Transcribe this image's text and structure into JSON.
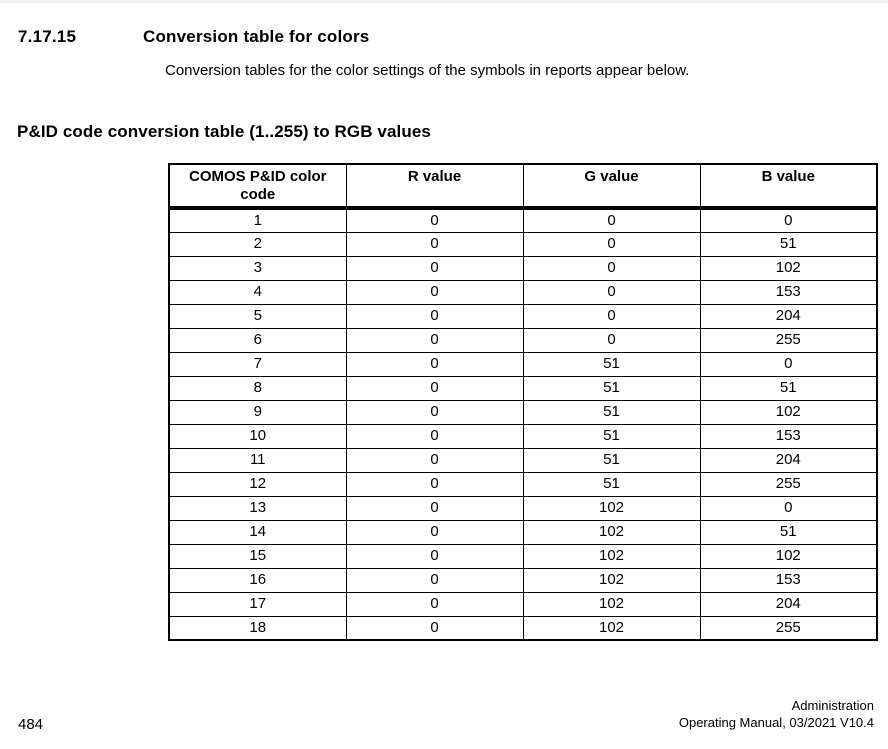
{
  "page": {
    "section_number": "7.17.15",
    "section_title": "Conversion table for colors",
    "intro_text": "Conversion tables for the color settings of the symbols in reports appear below.",
    "table_heading": "P&ID code conversion table (1..255) to RGB values"
  },
  "table": {
    "columns": [
      "COMOS P&ID color code",
      "R value",
      "G value",
      "B value"
    ],
    "rows": [
      [
        "1",
        "0",
        "0",
        "0"
      ],
      [
        "2",
        "0",
        "0",
        "51"
      ],
      [
        "3",
        "0",
        "0",
        "102"
      ],
      [
        "4",
        "0",
        "0",
        "153"
      ],
      [
        "5",
        "0",
        "0",
        "204"
      ],
      [
        "6",
        "0",
        "0",
        "255"
      ],
      [
        "7",
        "0",
        "51",
        "0"
      ],
      [
        "8",
        "0",
        "51",
        "51"
      ],
      [
        "9",
        "0",
        "51",
        "102"
      ],
      [
        "10",
        "0",
        "51",
        "153"
      ],
      [
        "11",
        "0",
        "51",
        "204"
      ],
      [
        "12",
        "0",
        "51",
        "255"
      ],
      [
        "13",
        "0",
        "102",
        "0"
      ],
      [
        "14",
        "0",
        "102",
        "51"
      ],
      [
        "15",
        "0",
        "102",
        "102"
      ],
      [
        "16",
        "0",
        "102",
        "153"
      ],
      [
        "17",
        "0",
        "102",
        "204"
      ],
      [
        "18",
        "0",
        "102",
        "255"
      ]
    ]
  },
  "footer": {
    "page_number": "484",
    "doc_title": "Administration",
    "doc_edition": "Operating Manual, 03/2021 V10.4"
  },
  "colors": {
    "text": "#000000",
    "border": "#000000",
    "background": "#ffffff",
    "top_edge": "#f2f2f2"
  }
}
